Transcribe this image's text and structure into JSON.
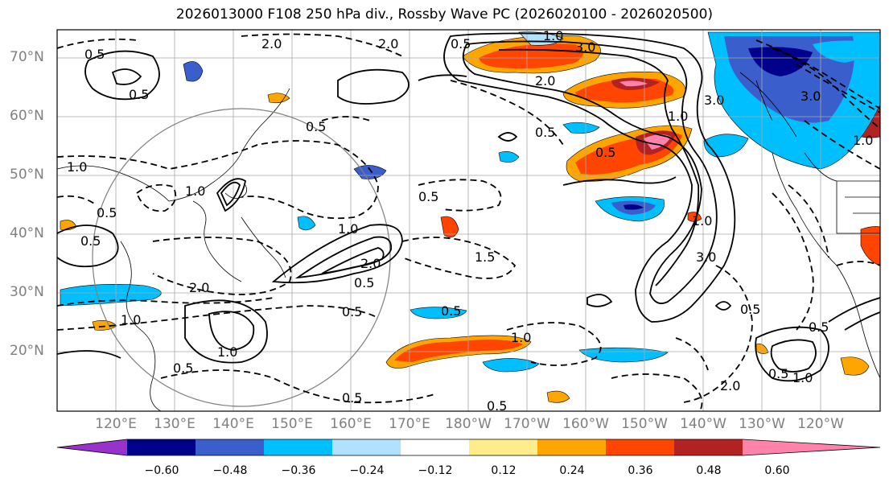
{
  "title": "2026013000 F108 250 hPa div., Rossby Wave PC (2026020100 - 2026020500)",
  "latitude_labels": [
    "70°N",
    "60°N",
    "50°N",
    "40°N",
    "30°N",
    "20°N"
  ],
  "longitude_labels": [
    "120°E",
    "130°E",
    "140°E",
    "150°E",
    "160°E",
    "170°E",
    "180°W",
    "170°W",
    "160°W",
    "150°W",
    "140°W",
    "130°W",
    "120°W"
  ],
  "colorbar": {
    "ticks": [
      "−0.60",
      "−0.48",
      "−0.36",
      "−0.24",
      "−0.12",
      "0.12",
      "0.24",
      "0.36",
      "0.48",
      "0.60"
    ],
    "colors": [
      "#9932cc",
      "#00008b",
      "#3a5fcd",
      "#00bfff",
      "#b0e2ff",
      "#ffffff",
      "#ffec8b",
      "#ffa500",
      "#ff4500",
      "#b22222",
      "#ff82ab"
    ]
  },
  "contour_labels": [
    "0.5",
    "0.5",
    "1.0",
    "2.0",
    "0.5",
    "1.0",
    "3.0",
    "2.0",
    "0.5",
    "3.0",
    "1.0",
    "0.5",
    "0.5",
    "1.0",
    "0.5",
    "1.0",
    "2.0",
    "0.5",
    "0.5",
    "1.0",
    "2.0",
    "0.5",
    "1.0",
    "0.5",
    "1.0",
    "3.0",
    "3.0",
    "1.5",
    "0.5",
    "0.5",
    "1.0",
    "2.0",
    "0.5",
    "0.5",
    "0.5",
    "1.0",
    "0.5",
    "1.0",
    "0.5",
    "2.0"
  ],
  "colors": {
    "grid": "#a9a9a9",
    "axis_label": "#808080",
    "circle": "#808080"
  }
}
